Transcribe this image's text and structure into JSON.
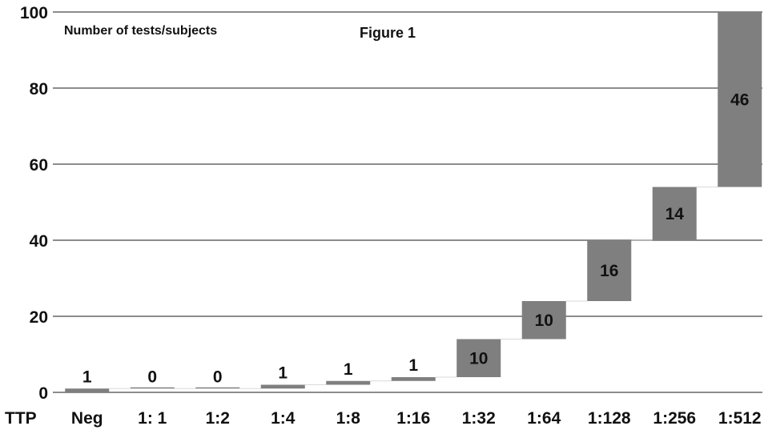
{
  "chart_data": {
    "type": "bar",
    "subtype": "waterfall",
    "title": "Figure 1",
    "ylabel": "Number of tests/subjects",
    "xlabel": "TTP",
    "categories": [
      "Neg",
      "1: 1",
      "1:2",
      "1:4",
      "1:8",
      "1:16",
      "1:32",
      "1:64",
      "1:128",
      "1:256",
      "1:512"
    ],
    "values": [
      1,
      0,
      0,
      1,
      1,
      1,
      10,
      10,
      16,
      14,
      46
    ],
    "data_labels": [
      "1",
      "0",
      "0",
      "1",
      "1",
      "1",
      "10",
      "10",
      "16",
      "14",
      "46"
    ],
    "ylim": [
      0,
      100
    ],
    "yticks": [
      0,
      20,
      40,
      60,
      80,
      100
    ],
    "ytick_labels": [
      "0",
      "20",
      "40",
      "60",
      "80",
      "100"
    ],
    "grid": true,
    "legend": "none",
    "bar_color": "#7f7f7f",
    "grid_color": "#8c8c8c"
  }
}
